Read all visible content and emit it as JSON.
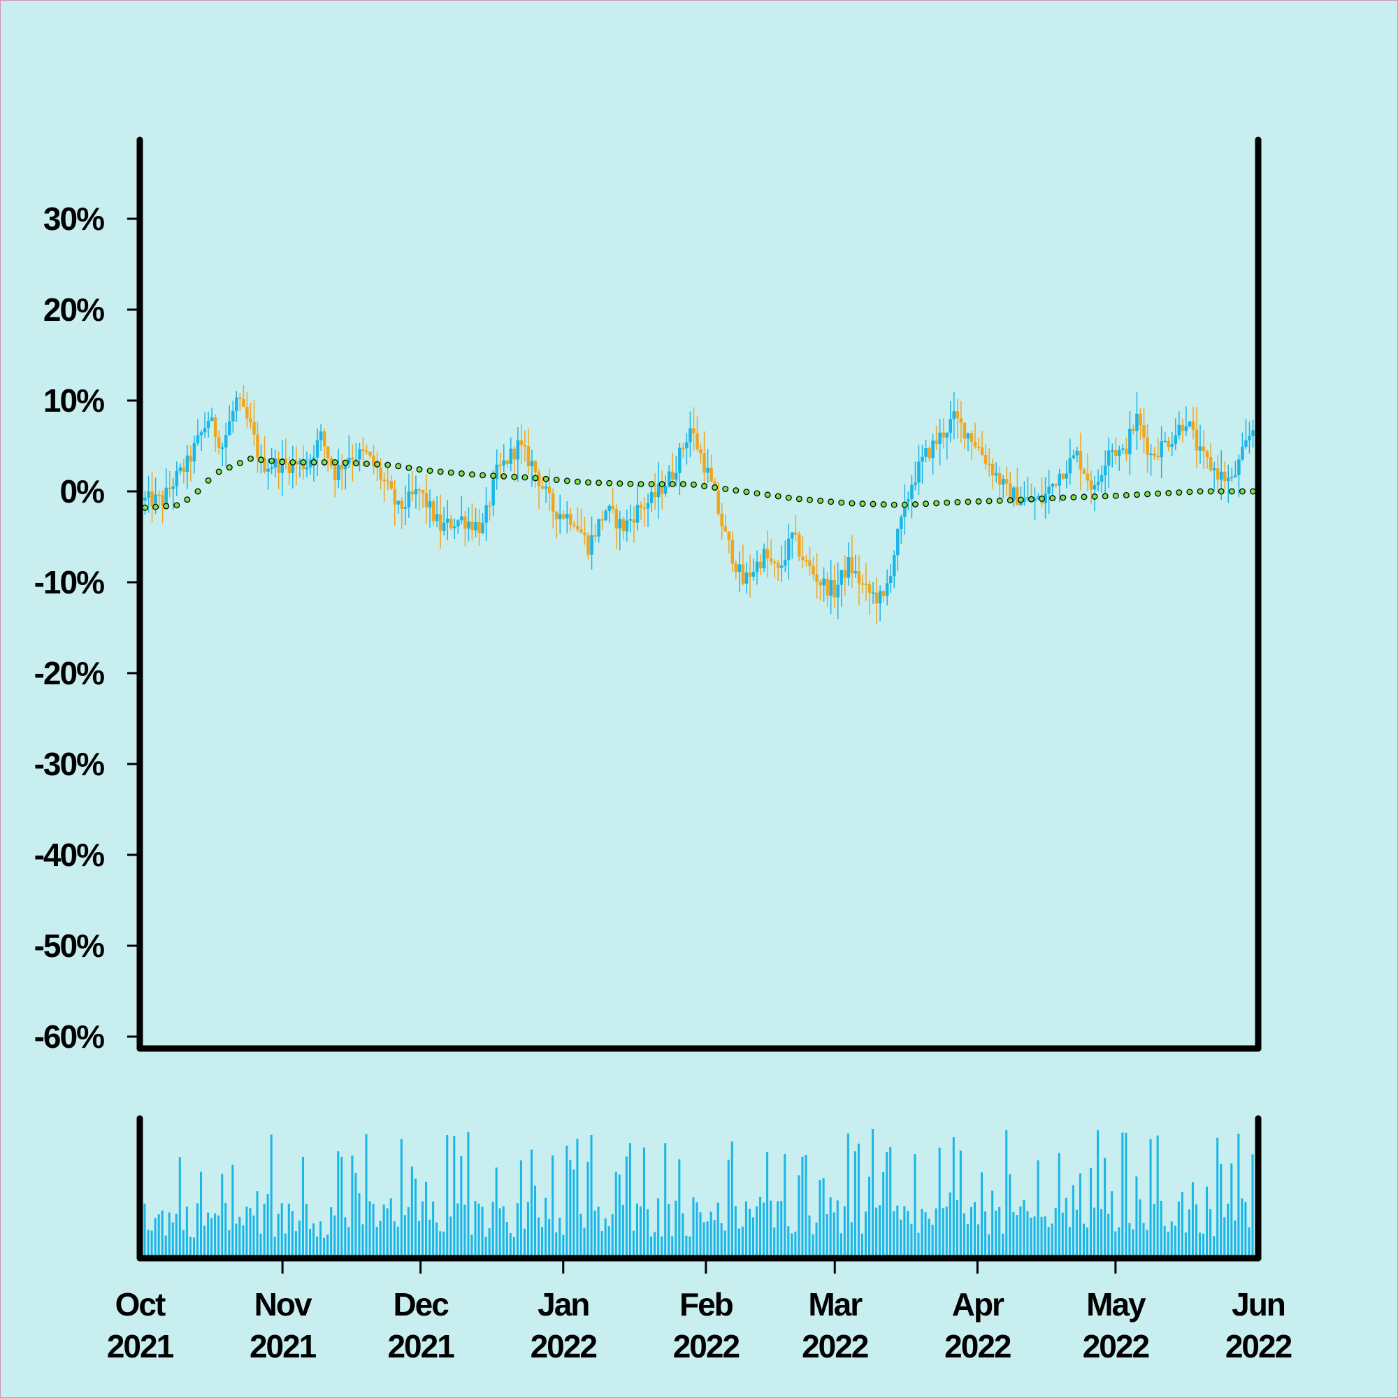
{
  "chart_data": {
    "type": "candlestick",
    "title": "",
    "xlabel": "",
    "ylabel": "",
    "ylim": [
      -60,
      35
    ],
    "yticks": [
      30,
      20,
      10,
      0,
      -10,
      -20,
      -30,
      -40,
      -50,
      -60
    ],
    "ytick_labels": [
      "30%",
      "20%",
      "10%",
      "0%",
      "-10%",
      "-20%",
      "-30%",
      "-40%",
      "-50%",
      "-60%"
    ],
    "xlim": [
      "2021-10-01",
      "2022-06-01"
    ],
    "xtick_labels": [
      {
        "month": "Oct",
        "year": "2021"
      },
      {
        "month": "Nov",
        "year": "2021"
      },
      {
        "month": "Dec",
        "year": "2021"
      },
      {
        "month": "Jan",
        "year": "2022"
      },
      {
        "month": "Feb",
        "year": "2022"
      },
      {
        "month": "Mar",
        "year": "2022"
      },
      {
        "month": "Apr",
        "year": "2022"
      },
      {
        "month": "May",
        "year": "2022"
      },
      {
        "month": "Jun",
        "year": "2022"
      }
    ],
    "close_path": [
      [
        0,
        -1
      ],
      [
        5,
        -1
      ],
      [
        8,
        1
      ],
      [
        12,
        3
      ],
      [
        18,
        8
      ],
      [
        22,
        5
      ],
      [
        26,
        10
      ],
      [
        30,
        7
      ],
      [
        33,
        3
      ],
      [
        40,
        3
      ],
      [
        46,
        3
      ],
      [
        50,
        6
      ],
      [
        54,
        2
      ],
      [
        58,
        4
      ],
      [
        63,
        4
      ],
      [
        68,
        1
      ],
      [
        72,
        -2
      ],
      [
        78,
        0
      ],
      [
        84,
        -4
      ],
      [
        90,
        -3
      ],
      [
        96,
        -4
      ],
      [
        100,
        2
      ],
      [
        106,
        5
      ],
      [
        110,
        3
      ],
      [
        116,
        -2
      ],
      [
        122,
        -3
      ],
      [
        126,
        -6
      ],
      [
        131,
        -2
      ],
      [
        136,
        -4
      ],
      [
        140,
        -2
      ],
      [
        144,
        -1
      ],
      [
        150,
        2
      ],
      [
        155,
        7
      ],
      [
        160,
        2
      ],
      [
        165,
        -5
      ],
      [
        170,
        -10
      ],
      [
        176,
        -7
      ],
      [
        180,
        -9
      ],
      [
        184,
        -5
      ],
      [
        188,
        -8
      ],
      [
        192,
        -10
      ],
      [
        196,
        -11
      ],
      [
        200,
        -8
      ],
      [
        205,
        -11
      ],
      [
        210,
        -12
      ],
      [
        214,
        -5
      ],
      [
        218,
        1
      ],
      [
        222,
        4
      ],
      [
        226,
        6
      ],
      [
        230,
        8
      ],
      [
        235,
        6
      ],
      [
        240,
        3
      ],
      [
        245,
        0
      ],
      [
        250,
        -1
      ],
      [
        255,
        -1
      ],
      [
        260,
        2
      ],
      [
        265,
        4
      ],
      [
        270,
        0
      ],
      [
        274,
        5
      ],
      [
        278,
        4
      ],
      [
        282,
        8
      ],
      [
        286,
        4
      ],
      [
        292,
        6
      ],
      [
        296,
        8
      ],
      [
        300,
        4
      ],
      [
        305,
        2
      ],
      [
        309,
        1
      ],
      [
        312,
        4
      ],
      [
        315,
        7
      ]
    ],
    "moving_average": [
      [
        0,
        -1.8
      ],
      [
        10,
        -1.5
      ],
      [
        15,
        0
      ],
      [
        20,
        2
      ],
      [
        30,
        3.6
      ],
      [
        40,
        3.2
      ],
      [
        55,
        3.2
      ],
      [
        70,
        2.9
      ],
      [
        80,
        2.3
      ],
      [
        95,
        1.8
      ],
      [
        110,
        1.5
      ],
      [
        125,
        1.0
      ],
      [
        140,
        0.8
      ],
      [
        155,
        0.8
      ],
      [
        170,
        0.0
      ],
      [
        185,
        -0.8
      ],
      [
        200,
        -1.3
      ],
      [
        215,
        -1.5
      ],
      [
        230,
        -1.2
      ],
      [
        245,
        -1.0
      ],
      [
        260,
        -0.7
      ],
      [
        275,
        -0.5
      ],
      [
        290,
        -0.2
      ],
      [
        300,
        0.0
      ],
      [
        315,
        0.0
      ]
    ],
    "colors": {
      "up": "#1bb5e6",
      "down": "#f0a51e",
      "moving_average": "#7be34c",
      "volume": "#1bb5e6",
      "axis": "#000000",
      "background": "#c9eef0"
    }
  }
}
